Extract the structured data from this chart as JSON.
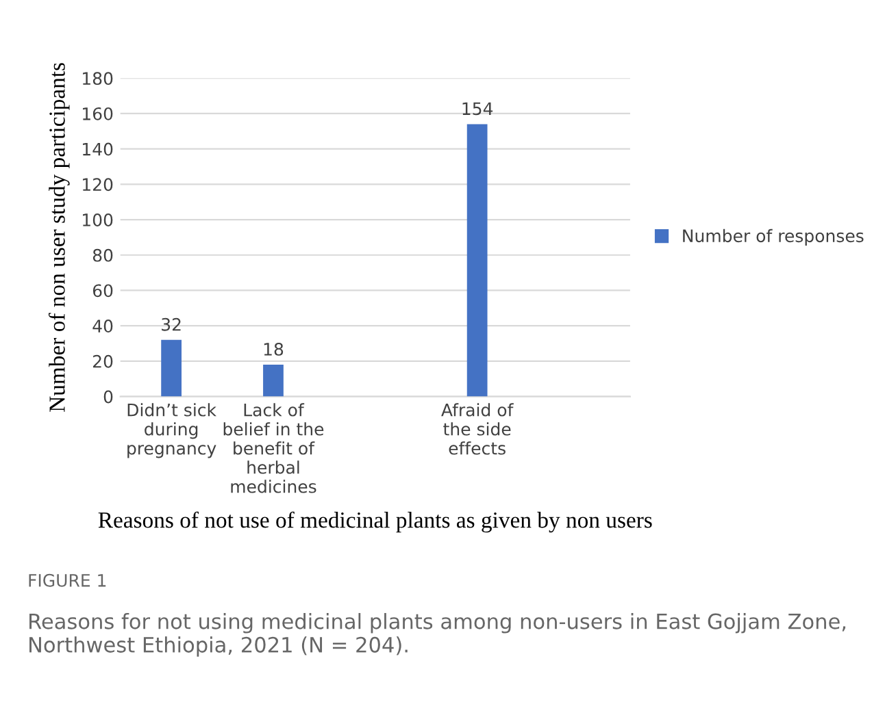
{
  "chart_data": {
    "type": "bar",
    "categories": [
      "Didn’t sick\nduring\npregnancy",
      "Lack of\nbelief in the\nbenefit of\nherbal\nmedicines",
      null,
      "Afraid of\nthe side\neffects",
      null
    ],
    "series": [
      {
        "name": "Number of responses",
        "color": "#4472c4",
        "values": [
          32,
          18,
          null,
          154,
          null
        ]
      }
    ],
    "ylim": [
      0,
      180
    ],
    "yticks": [
      0,
      20,
      40,
      60,
      80,
      100,
      120,
      140,
      160,
      180
    ],
    "ylabel": "Number of non user study participants",
    "xlabel": "Reasons of not use of medicinal plants as given by non users",
    "annotations": [
      "FIGURE 1",
      "Reasons for not using medicinal plants among non-users in East Gojjam Zone, Northwest Ethiopia, 2021 (N = 204)."
    ],
    "data_labels": true,
    "grid": "y",
    "legend": "right"
  }
}
